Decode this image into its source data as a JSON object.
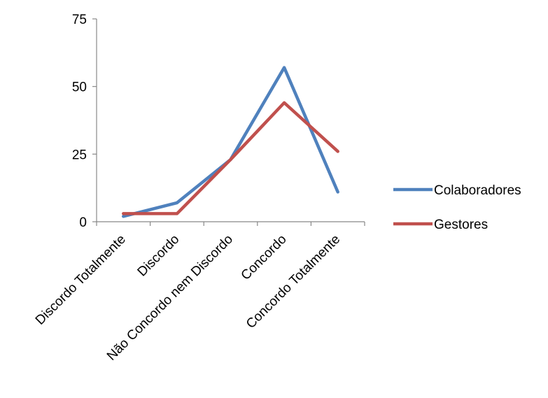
{
  "chart_data": {
    "type": "line",
    "title": "",
    "xlabel": "",
    "ylabel": "",
    "categories": [
      "Discordo Totalmente",
      "Discordo",
      "Não Concordo nem Discordo",
      "Concordo",
      "Concordo Totalmente"
    ],
    "ylim": [
      0,
      75
    ],
    "yticks": [
      0,
      25,
      50,
      75
    ],
    "grid": false,
    "legend_position": "right",
    "series": [
      {
        "name": "Colaboradores",
        "color": "#4F81BD",
        "values": [
          2,
          7,
          23,
          57,
          11
        ]
      },
      {
        "name": "Gestores",
        "color": "#C0504D",
        "values": [
          3,
          3,
          23,
          44,
          26
        ]
      }
    ]
  }
}
